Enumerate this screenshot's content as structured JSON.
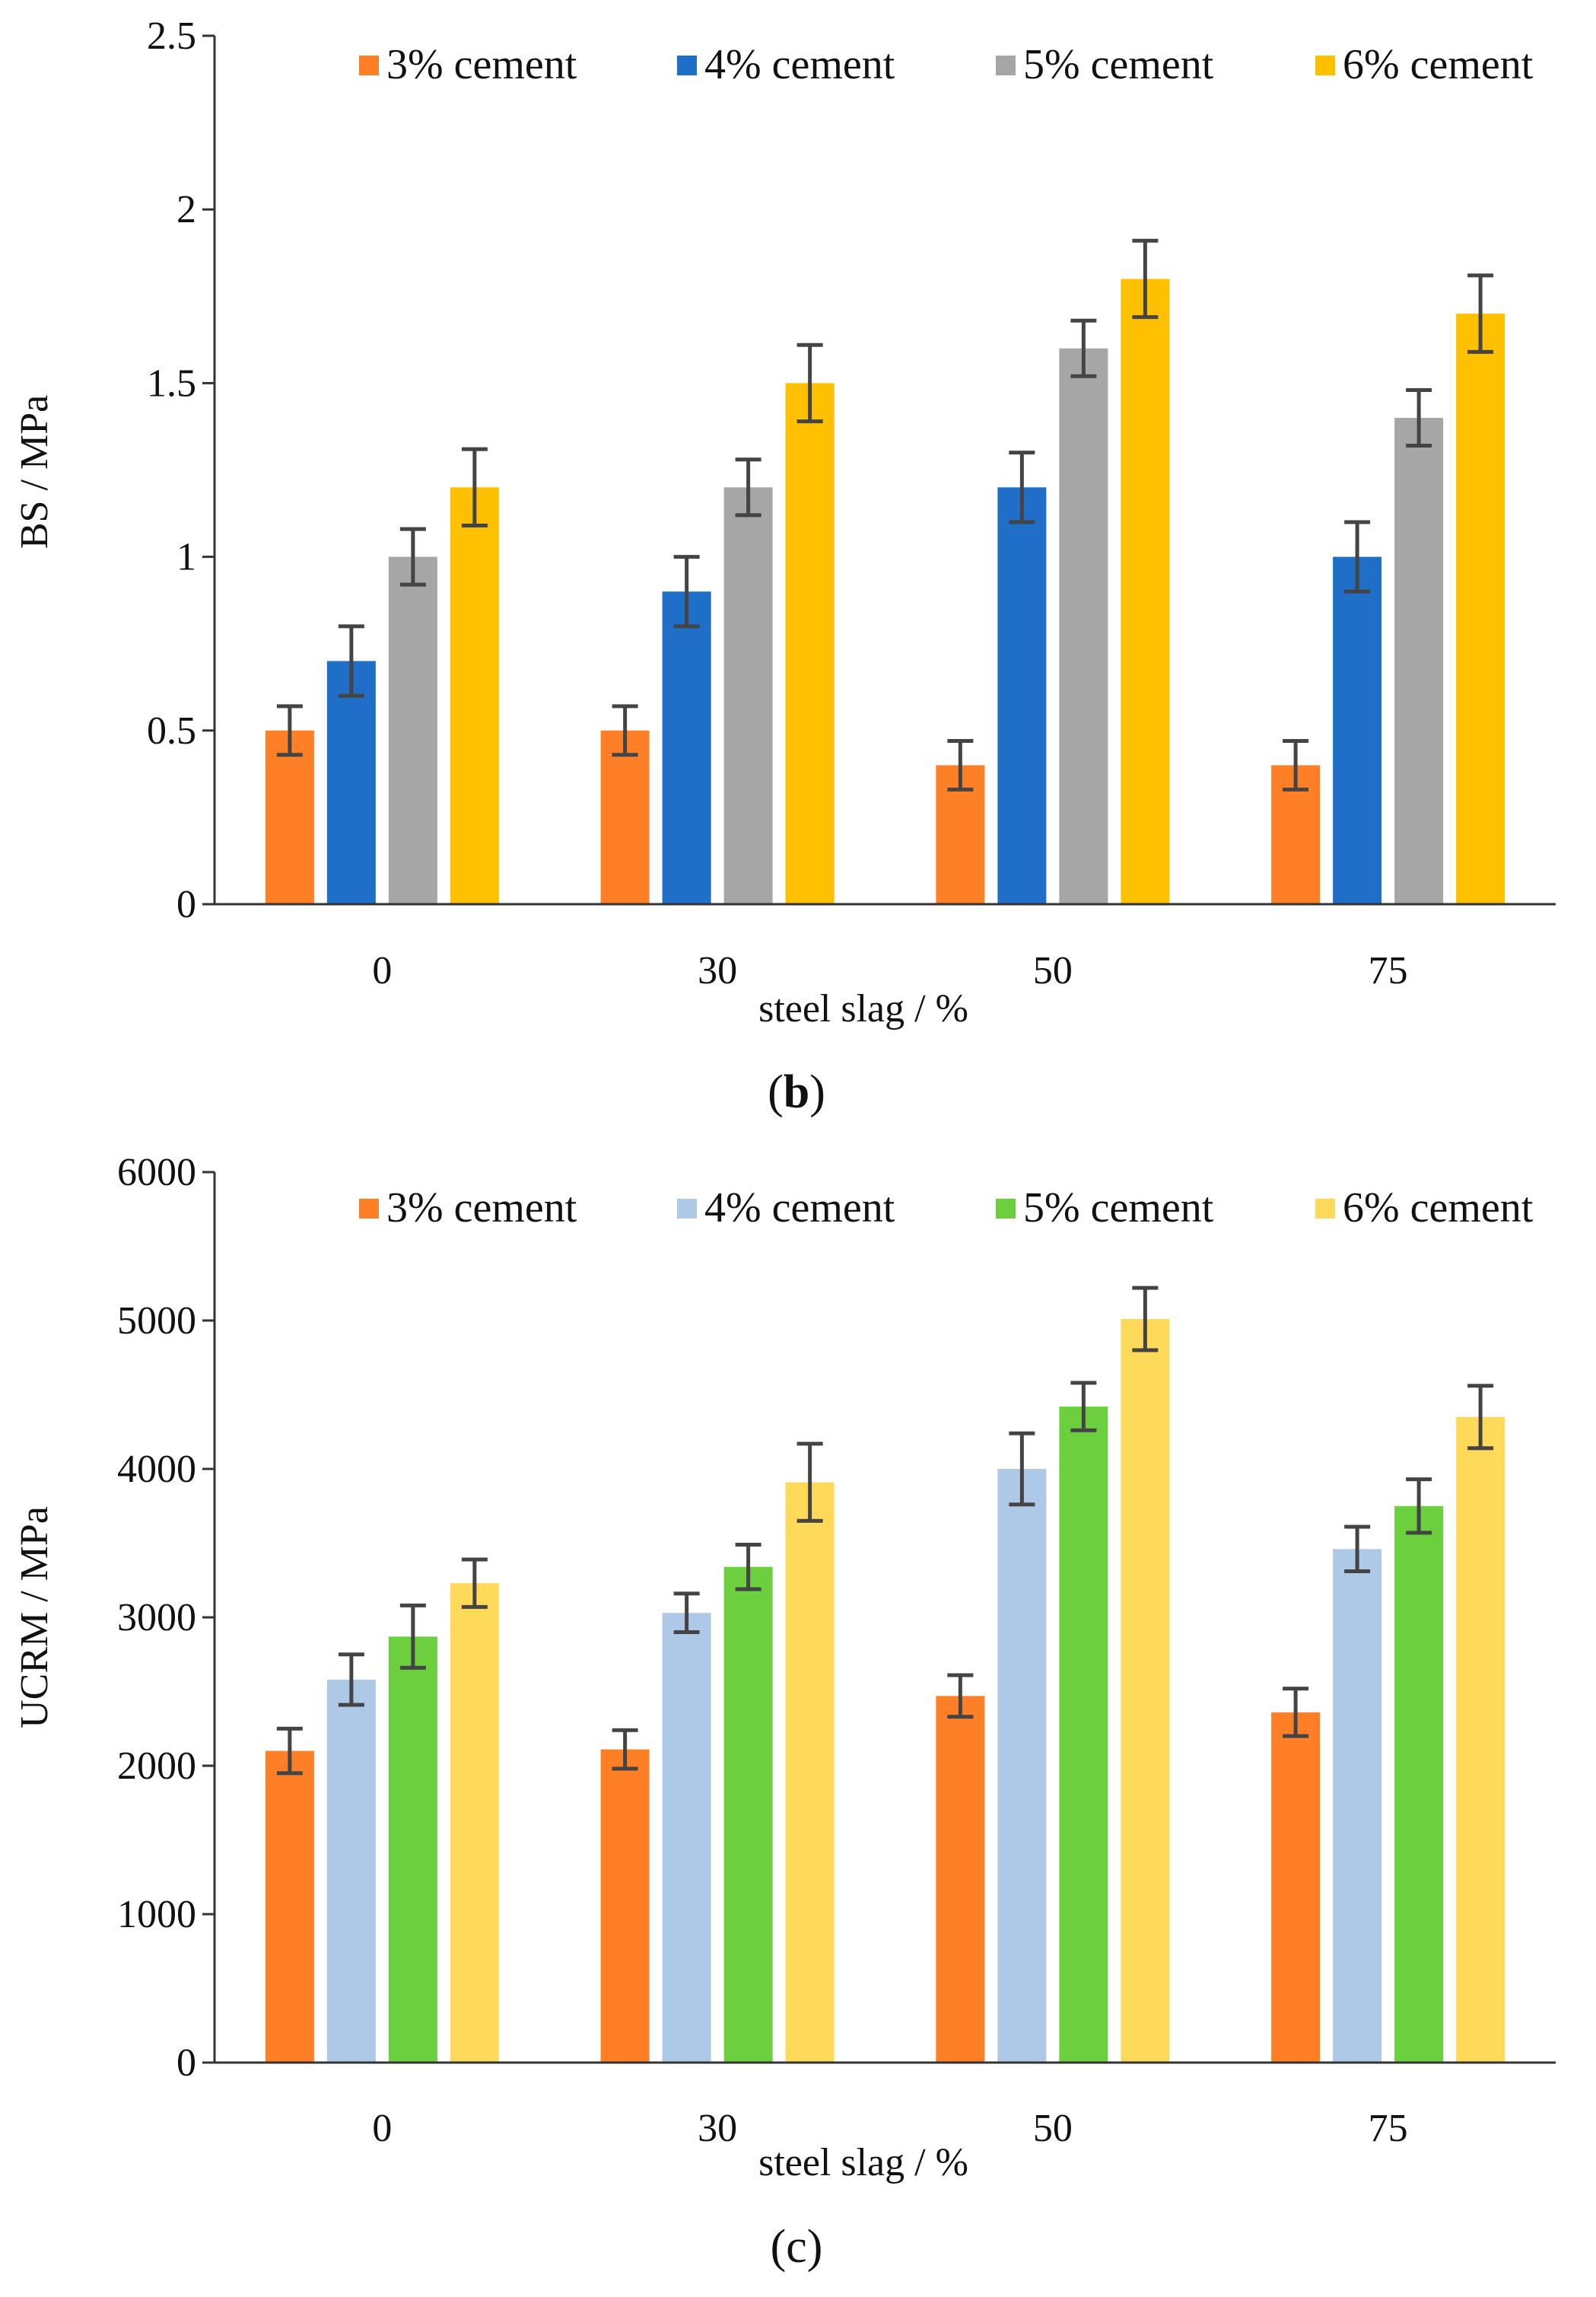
{
  "chart_data": [
    {
      "type": "bar",
      "panel_label": "b",
      "title": "",
      "xlabel": "steel slag / %",
      "ylabel": "BS / MPa",
      "categories": [
        "0",
        "30",
        "50",
        "75"
      ],
      "ylim": [
        0,
        2.5
      ],
      "yticks": [
        "0",
        "0.5",
        "1",
        "1.5",
        "2",
        "2.5"
      ],
      "grid": false,
      "legend_position": "top",
      "series": [
        {
          "name": "3% cement",
          "color": "#FF7F27",
          "values": [
            0.5,
            0.5,
            0.4,
            0.4
          ],
          "errors": [
            0.07,
            0.07,
            0.07,
            0.07
          ]
        },
        {
          "name": "4% cement",
          "color": "#1F6FC9",
          "values": [
            0.7,
            0.9,
            1.2,
            1.0
          ],
          "errors": [
            0.1,
            0.1,
            0.1,
            0.1
          ]
        },
        {
          "name": "5% cement",
          "color": "#A6A6A6",
          "values": [
            1.0,
            1.2,
            1.6,
            1.4
          ],
          "errors": [
            0.08,
            0.08,
            0.08,
            0.08
          ]
        },
        {
          "name": "6% cement",
          "color": "#FFC000",
          "values": [
            1.2,
            1.5,
            1.8,
            1.7
          ],
          "errors": [
            0.11,
            0.11,
            0.11,
            0.11
          ]
        }
      ]
    },
    {
      "type": "bar",
      "panel_label": "c",
      "title": "",
      "xlabel": "steel slag / %",
      "ylabel": "UCRM / MPa",
      "categories": [
        "0",
        "30",
        "50",
        "75"
      ],
      "ylim": [
        0,
        6000
      ],
      "yticks": [
        "0",
        "1000",
        "2000",
        "3000",
        "4000",
        "5000",
        "6000"
      ],
      "grid": false,
      "legend_position": "top",
      "series": [
        {
          "name": "3% cement",
          "color": "#FF7F27",
          "values": [
            2100,
            2110,
            2470,
            2360
          ],
          "errors": [
            150,
            130,
            140,
            160
          ]
        },
        {
          "name": "4% cement",
          "color": "#AEC8E8",
          "values": [
            2580,
            3030,
            4000,
            3460
          ],
          "errors": [
            170,
            130,
            240,
            150
          ]
        },
        {
          "name": "5% cement",
          "color": "#6CCF3E",
          "values": [
            2870,
            3340,
            4420,
            3750
          ],
          "errors": [
            210,
            150,
            160,
            180
          ]
        },
        {
          "name": "6% cement",
          "color": "#FFD95A",
          "values": [
            3230,
            3910,
            5010,
            4350
          ],
          "errors": [
            160,
            260,
            210,
            210
          ]
        }
      ]
    }
  ]
}
